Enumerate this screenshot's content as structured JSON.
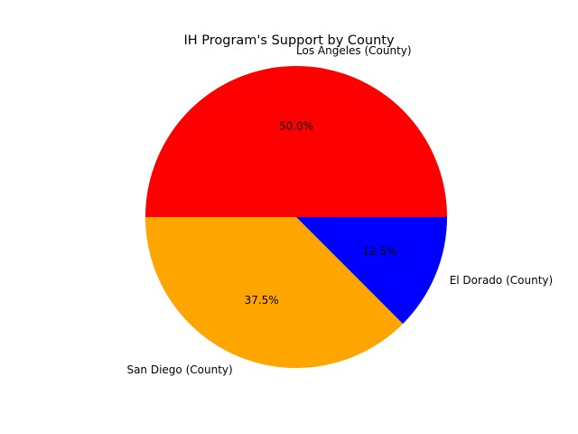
{
  "chart_data": {
    "type": "pie",
    "title": "IH Program's Support by County",
    "categories": [
      "Los Angeles (County)",
      "San Diego (County)",
      "El Dorado (County)"
    ],
    "values": [
      50.0,
      37.5,
      12.5
    ],
    "percent_labels": [
      "50.0%",
      "37.5%",
      "12.5%"
    ],
    "colors": [
      "#ff0000",
      "#ffa500",
      "#0000ff"
    ],
    "start_angle_deg": 0,
    "direction": "counterclockwise",
    "legend": "none"
  }
}
